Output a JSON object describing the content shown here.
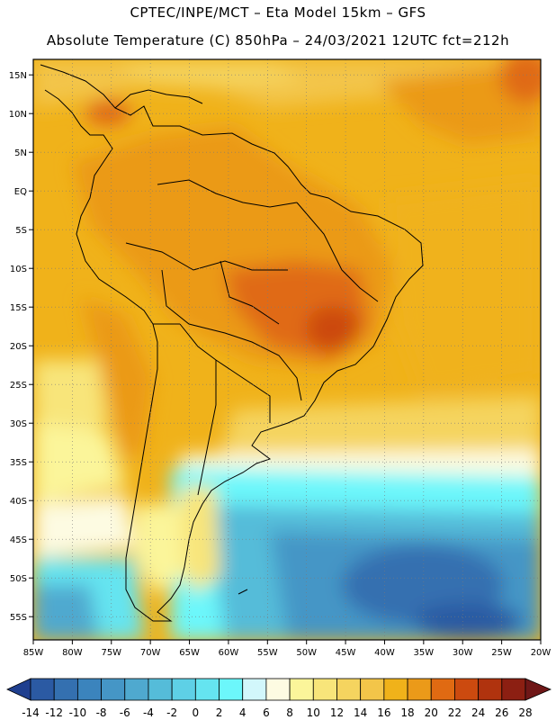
{
  "title": {
    "line1": "CPTEC/INPE/MCT –   Eta Model 15km – GFS",
    "line2": "Absolute Temperature (C) 850hPa – 24/03/2021 12UTC fct=212h"
  },
  "map": {
    "lon_range": [
      -85,
      -20
    ],
    "lat_range": [
      -58,
      17
    ],
    "lon_ticks": [
      "85W",
      "80W",
      "75W",
      "70W",
      "65W",
      "60W",
      "55W",
      "50W",
      "45W",
      "40W",
      "35W",
      "30W",
      "25W",
      "20W"
    ],
    "lat_ticks": [
      "15N",
      "10N",
      "5N",
      "EQ",
      "5S",
      "10S",
      "15S",
      "20S",
      "25S",
      "30S",
      "35S",
      "40S",
      "45S",
      "50S",
      "55S"
    ]
  },
  "colorbar": {
    "labels": [
      "-14",
      "-12",
      "-10",
      "-8",
      "-6",
      "-4",
      "-2",
      "0",
      "2",
      "4",
      "6",
      "8",
      "10",
      "12",
      "14",
      "16",
      "18",
      "20",
      "22",
      "24",
      "26",
      "28"
    ],
    "colors": [
      "#1f3f8f",
      "#2b5aa3",
      "#3470b0",
      "#3b84bd",
      "#4596c6",
      "#4fa9cf",
      "#55bcd9",
      "#5ed0e6",
      "#65e4f0",
      "#6cf7fb",
      "#d2f7fb",
      "#fdfbe2",
      "#fbf59a",
      "#f8e57a",
      "#f5d45f",
      "#f3c549",
      "#f0b21a",
      "#eb9a19",
      "#e06a12",
      "#cc4a0f",
      "#b0330e",
      "#8c1f12",
      "#6f1717"
    ]
  }
}
